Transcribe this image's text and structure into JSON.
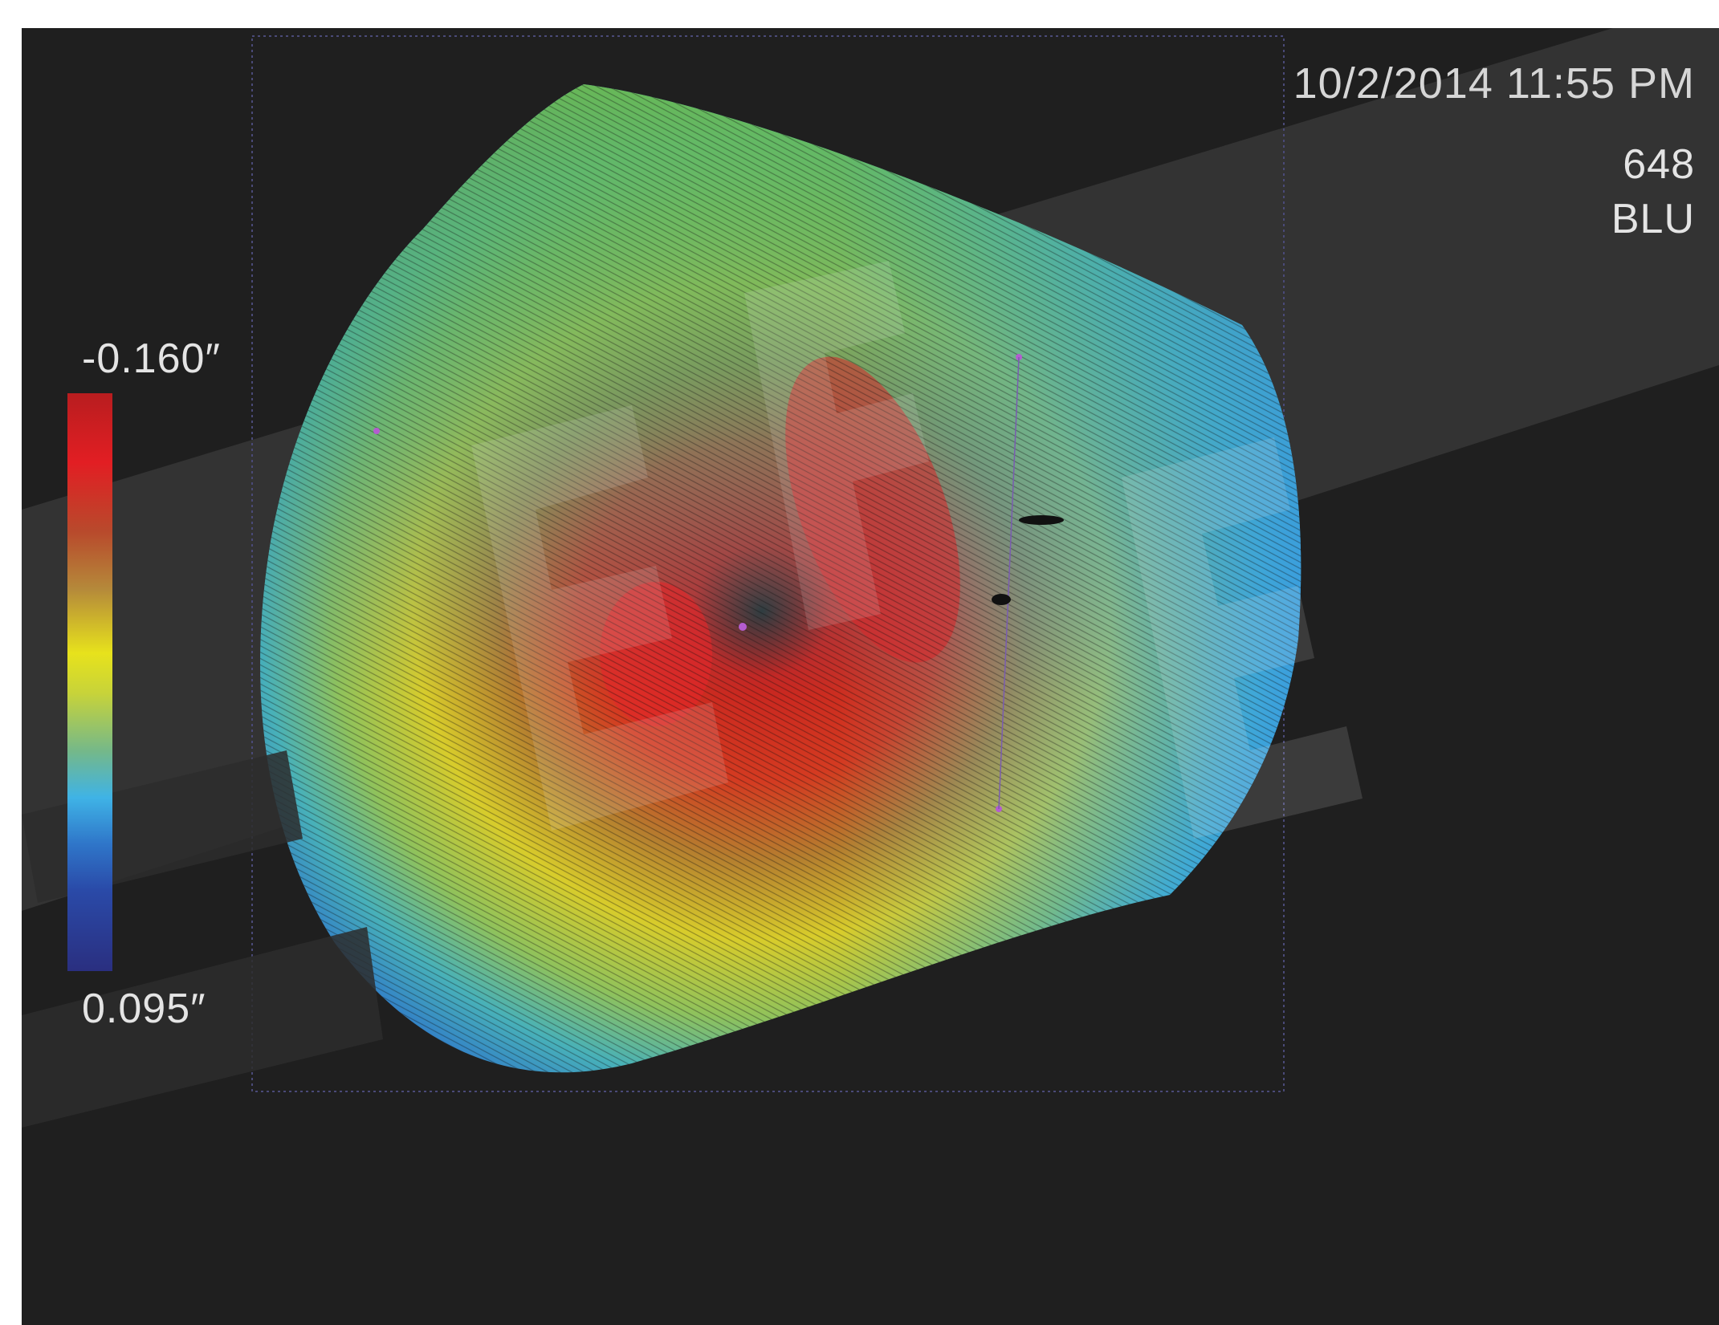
{
  "header": {
    "datetime": "10/2/2014  11:55 PM",
    "scan_id": "648",
    "scan_label": "BLU"
  },
  "legend": {
    "max_label": "-0.160″",
    "min_label": "0.095″",
    "colors": [
      "#e21e23",
      "#b58a3a",
      "#e7e21c",
      "#74b88a",
      "#3fb3e6",
      "#2a4aa8",
      "#2a2f80"
    ]
  },
  "colors": {
    "background": "#1f1f1f",
    "watermark": "#3a3a3a"
  },
  "watermark": {
    "text": "BFE"
  }
}
